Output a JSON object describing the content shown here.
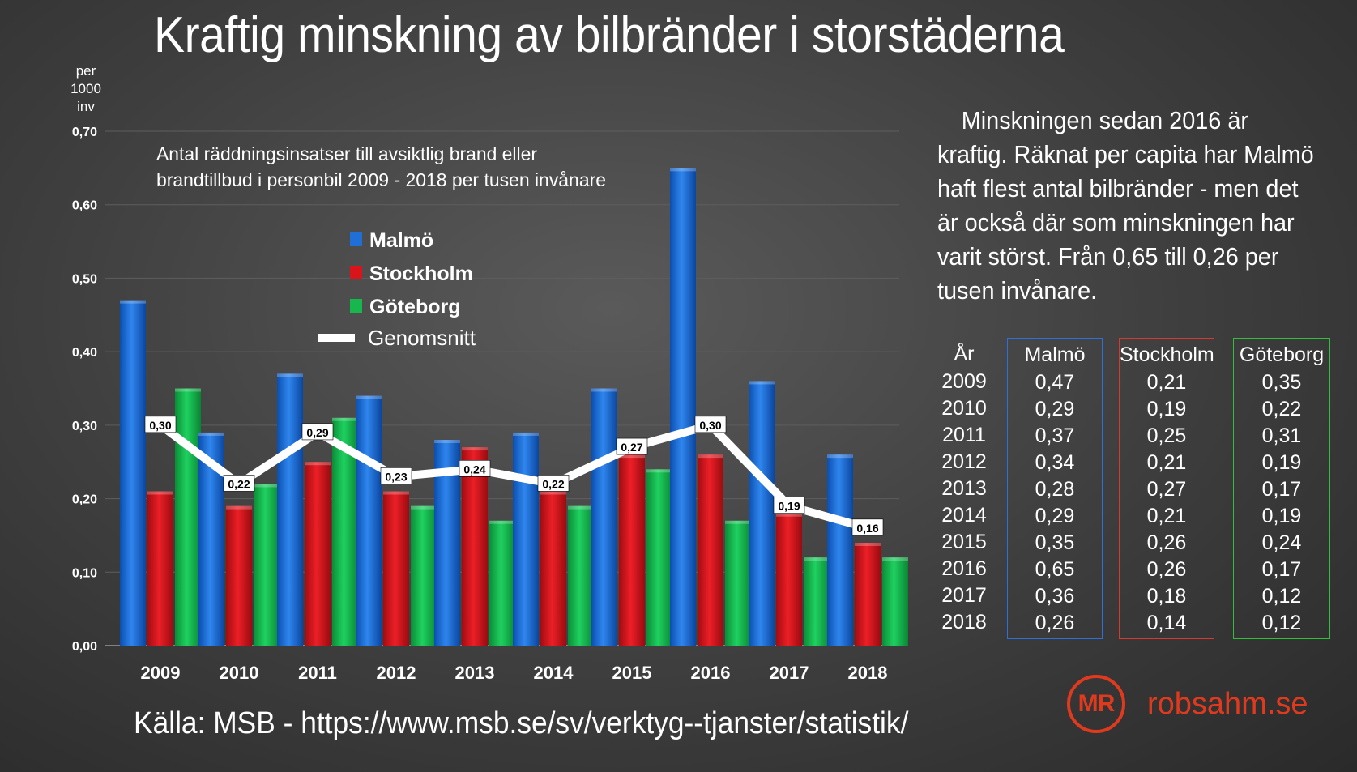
{
  "title": "Kraftig minskning av bilbränder i storstäderna",
  "description": "Minskningen sedan 2016 är kraftig. Räknat per capita har Malmö haft flest antal bilbränder - men det är också där som minskningen har varit störst. Från 0,65 till 0,26 per tusen invånare.",
  "source": "Källa: MSB - https://www.msb.se/sv/verktyg--tjanster/statistik/",
  "logo": {
    "initials": "MR",
    "site": "robsahm.se"
  },
  "colors": {
    "malmo": "#1f6fd6",
    "stockholm": "#d9141b",
    "goteborg": "#16b84e",
    "average": "#ffffff",
    "accent": "#e03a1e"
  },
  "chart_data": {
    "type": "bar",
    "subtitle_lines": [
      "Antal räddningsinsatser till avsiktlig brand eller",
      "brandtillbud i personbil 2009 - 2018 per tusen invånare"
    ],
    "ylabel_lines": [
      "per",
      "1000",
      "inv"
    ],
    "ylim": [
      0,
      0.7
    ],
    "yticks": [
      "0,00",
      "0,10",
      "0,20",
      "0,30",
      "0,40",
      "0,50",
      "0,60",
      "0,70"
    ],
    "categories": [
      "2009",
      "2010",
      "2011",
      "2012",
      "2013",
      "2014",
      "2015",
      "2016",
      "2017",
      "2018"
    ],
    "series": [
      {
        "name": "Malmö",
        "values": [
          0.47,
          0.29,
          0.37,
          0.34,
          0.28,
          0.29,
          0.35,
          0.65,
          0.36,
          0.26
        ]
      },
      {
        "name": "Stockholm",
        "values": [
          0.21,
          0.19,
          0.25,
          0.21,
          0.27,
          0.21,
          0.26,
          0.26,
          0.18,
          0.14
        ]
      },
      {
        "name": "Göteborg",
        "values": [
          0.35,
          0.22,
          0.31,
          0.19,
          0.17,
          0.19,
          0.24,
          0.17,
          0.12,
          0.12
        ]
      }
    ],
    "average": {
      "name": "Genomsnitt",
      "type": "line",
      "values": [
        0.3,
        0.22,
        0.29,
        0.23,
        0.24,
        0.22,
        0.27,
        0.3,
        0.19,
        0.16
      ],
      "labels": [
        "0,30",
        "0,22",
        "0,29",
        "0,23",
        "0,24",
        "0,22",
        "0,27",
        "0,30",
        "0,19",
        "0,16"
      ]
    },
    "legend_position": "inside-top-center",
    "grid": true
  },
  "table": {
    "headers": {
      "year": "År",
      "malmo": "Malmö",
      "stockholm": "Stockholm",
      "goteborg": "Göteborg"
    },
    "years": [
      "2009",
      "2010",
      "2011",
      "2012",
      "2013",
      "2014",
      "2015",
      "2016",
      "2017",
      "2018"
    ],
    "malmo": [
      "0,47",
      "0,29",
      "0,37",
      "0,34",
      "0,28",
      "0,29",
      "0,35",
      "0,65",
      "0,36",
      "0,26"
    ],
    "stockholm": [
      "0,21",
      "0,19",
      "0,25",
      "0,21",
      "0,27",
      "0,21",
      "0,26",
      "0,26",
      "0,18",
      "0,14"
    ],
    "goteborg": [
      "0,35",
      "0,22",
      "0,31",
      "0,19",
      "0,17",
      "0,19",
      "0,24",
      "0,17",
      "0,12",
      "0,12"
    ]
  }
}
